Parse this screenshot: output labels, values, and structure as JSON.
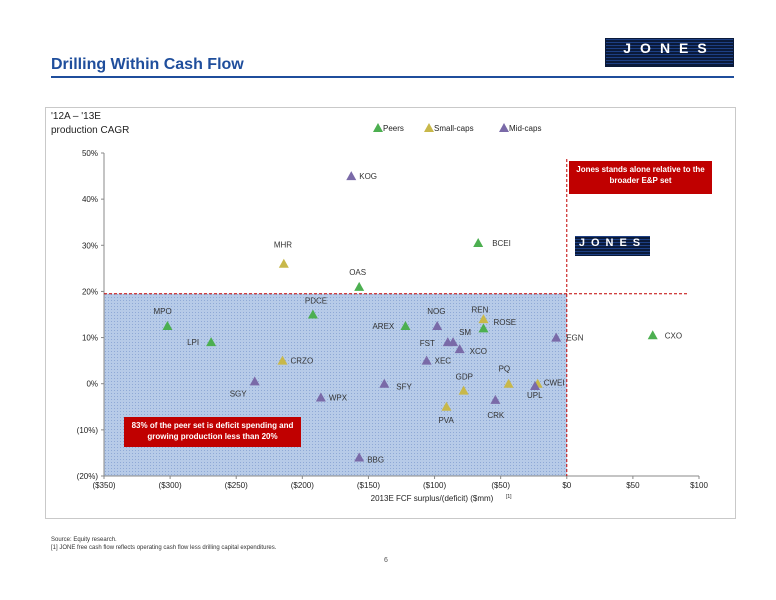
{
  "title": "Drilling Within Cash Flow",
  "logo_text": "JONES",
  "chart_data": {
    "type": "scatter",
    "ylabel_line1": "'12A – '13E",
    "ylabel_line2": "production CAGR",
    "xlabel": "2013E FCF surplus/(deficit) ($mm)",
    "xlabel_footnote": "[1]",
    "xlim": [
      -350,
      100
    ],
    "ylim": [
      -20,
      50
    ],
    "x_ticks": [
      -350,
      -300,
      -250,
      -200,
      -150,
      -100,
      -50,
      0,
      50,
      100
    ],
    "x_tick_labels": [
      "($350)",
      "($300)",
      "($250)",
      "($200)",
      "($150)",
      "($100)",
      "($50)",
      "$0",
      "$50",
      "$100"
    ],
    "y_ticks": [
      -20,
      -10,
      0,
      10,
      20,
      30,
      40,
      50
    ],
    "y_tick_labels": [
      "(20%)",
      "(10%)",
      "0%",
      "10%",
      "20%",
      "30%",
      "40%",
      "50%"
    ],
    "legend_position": "top-center",
    "series": [
      {
        "name": "Peers",
        "color": "#4caf50",
        "points": [
          {
            "label": "MPO",
            "x": -302,
            "y": 12.5
          },
          {
            "label": "LPI",
            "x": -269,
            "y": 9
          },
          {
            "label": "PDCE",
            "x": -192,
            "y": 15
          },
          {
            "label": "OAS",
            "x": -157,
            "y": 21
          },
          {
            "label": "AREX",
            "x": -122,
            "y": 12.5
          },
          {
            "label": "BCEI",
            "x": -67,
            "y": 30.5
          },
          {
            "label": "REN",
            "x": -63,
            "y": 12
          },
          {
            "label": "CXO",
            "x": 65,
            "y": 10.5
          }
        ]
      },
      {
        "name": "Small-caps",
        "color": "#c8b84a",
        "points": [
          {
            "label": "MHR",
            "x": -214,
            "y": 26
          },
          {
            "label": "CRZO",
            "x": -215,
            "y": 5
          },
          {
            "label": "ROSE",
            "x": -63,
            "y": 14
          },
          {
            "label": "GDP",
            "x": -78,
            "y": -1.5
          },
          {
            "label": "PVA",
            "x": -91,
            "y": -5
          },
          {
            "label": "PQ",
            "x": -44,
            "y": 0
          },
          {
            "label": "CWEI",
            "x": -22,
            "y": 0
          }
        ]
      },
      {
        "name": "Mid-caps",
        "color": "#7a6aa8",
        "points": [
          {
            "label": "KOG",
            "x": -163,
            "y": 45
          },
          {
            "label": "SGY",
            "x": -236,
            "y": 0.5
          },
          {
            "label": "WPX",
            "x": -186,
            "y": -3
          },
          {
            "label": "SFY",
            "x": -138,
            "y": 0
          },
          {
            "label": "BBG",
            "x": -157,
            "y": -16
          },
          {
            "label": "NOG",
            "x": -98,
            "y": 12.5
          },
          {
            "label": "FST",
            "x": -90,
            "y": 9
          },
          {
            "label": "SM",
            "x": -86,
            "y": 9
          },
          {
            "label": "XCO",
            "x": -81,
            "y": 7.5
          },
          {
            "label": "XEC",
            "x": -106,
            "y": 5
          },
          {
            "label": "CRK",
            "x": -54,
            "y": -3.5
          },
          {
            "label": "UPL",
            "x": -24,
            "y": -0.5
          },
          {
            "label": "EGN",
            "x": -8,
            "y": 10
          }
        ]
      }
    ],
    "reference_line_y": 19.5,
    "reference_line_x": 0,
    "shaded_region": {
      "x": [
        -350,
        0
      ],
      "y": [
        -20,
        19.5
      ]
    }
  },
  "callouts": {
    "right": "Jones stands alone relative to the broader E&P set",
    "left": "83% of the peer set is deficit spending and growing production less than 20%"
  },
  "footnotes": {
    "source": "Source: Equity research.",
    "note": "[1] JONE free cash flow reflects operating cash flow less drilling capital expenditures."
  },
  "page_number": "6"
}
